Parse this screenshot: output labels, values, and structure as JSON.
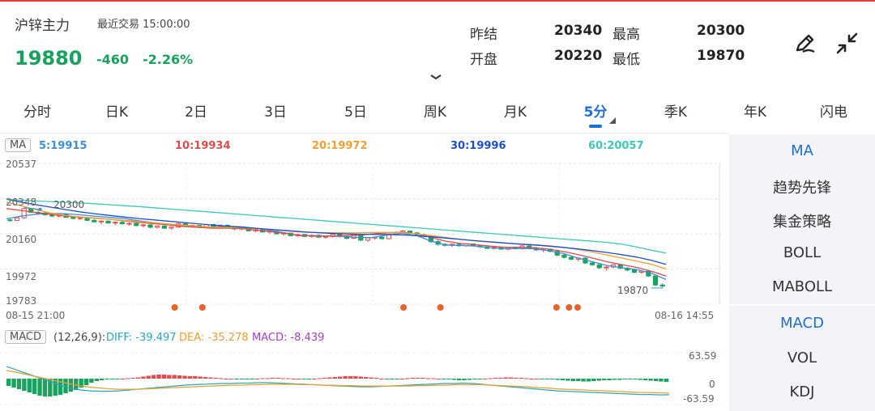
{
  "header": {
    "name": "沪锌主力",
    "trade_status": "最近交易 15:00:00",
    "price": "19880",
    "change": "-460",
    "change_pct": "-2.26%"
  },
  "stats": {
    "prev_settle_label": "昨结",
    "prev_settle": "20340",
    "high_label": "最高",
    "high": "20300",
    "open_label": "开盘",
    "open": "20220",
    "low_label": "最低",
    "low": "19870"
  },
  "icons": {
    "edit": "pencil-icon",
    "collapse": "collapse-arrows-icon",
    "expand": "chevron-down-icon"
  },
  "tabs": [
    "分时",
    "日K",
    "2日",
    "3日",
    "5日",
    "周K",
    "月K",
    "5分",
    "季K",
    "年K",
    "闪电"
  ],
  "active_tab": "5分",
  "ma_legend": {
    "badge": "MA",
    "ma5": "5:19915",
    "ma10": "10:19934",
    "ma20": "20:19972",
    "ma30": "30:19996",
    "ma60": "60:20057"
  },
  "colors": {
    "up": "#e04b4b",
    "down": "#1aa35f",
    "ma5": "#3d8fd8",
    "ma10": "#e04b4b",
    "ma20": "#f0a030",
    "ma30": "#1c4fd0",
    "ma60": "#3cc8b8",
    "dea": "#e8a030",
    "macd": "#a23fc8"
  },
  "price_axis": [
    "20537",
    "20348",
    "20160",
    "19972",
    "19783"
  ],
  "high_marker": "20300",
  "low_marker": "19870",
  "time_axis": {
    "start": "08-15 21:00",
    "end": "08-16 14:55"
  },
  "macd": {
    "badge": "MACD",
    "params": "(12,26,9):",
    "diff": "DIFF: -39.497",
    "dea": "DEA: -35.278",
    "macd": "MACD: -8.439",
    "axis": [
      "63.59",
      "0",
      "-63.59"
    ]
  },
  "side_panel": {
    "main": [
      "MA",
      "趋势先锋",
      "集金策略",
      "BOLL",
      "MABOLL"
    ],
    "sub": [
      "MACD",
      "VOL",
      "KDJ"
    ],
    "active_main": "MA",
    "active_sub": "MACD"
  },
  "chart_data": {
    "type": "candlestick",
    "ylim": [
      19783,
      20537
    ],
    "candles": [
      [
        20235,
        20240,
        20225,
        20232
      ],
      [
        20232,
        20248,
        20228,
        20246
      ],
      [
        20246,
        20300,
        20240,
        20295
      ],
      [
        20295,
        20298,
        20270,
        20275
      ],
      [
        20275,
        20285,
        20262,
        20272
      ],
      [
        20272,
        20278,
        20258,
        20262
      ],
      [
        20262,
        20270,
        20250,
        20255
      ],
      [
        20255,
        20268,
        20248,
        20264
      ],
      [
        20264,
        20270,
        20245,
        20248
      ],
      [
        20248,
        20255,
        20238,
        20242
      ],
      [
        20242,
        20250,
        20232,
        20246
      ],
      [
        20246,
        20250,
        20228,
        20232
      ],
      [
        20232,
        20240,
        20220,
        20224
      ],
      [
        20224,
        20232,
        20212,
        20228
      ],
      [
        20228,
        20232,
        20214,
        20218
      ],
      [
        20218,
        20226,
        20206,
        20222
      ],
      [
        20222,
        20228,
        20210,
        20214
      ],
      [
        20214,
        20222,
        20204,
        20216
      ],
      [
        20216,
        20220,
        20200,
        20204
      ],
      [
        20204,
        20212,
        20194,
        20208
      ],
      [
        20208,
        20212,
        20190,
        20195
      ],
      [
        20195,
        20206,
        20188,
        20202
      ],
      [
        20202,
        20206,
        20186,
        20190
      ],
      [
        20190,
        20200,
        20182,
        20196
      ],
      [
        20196,
        20220,
        20192,
        20215
      ],
      [
        20215,
        20218,
        20198,
        20202
      ],
      [
        20202,
        20210,
        20192,
        20205
      ],
      [
        20205,
        20208,
        20190,
        20194
      ],
      [
        20194,
        20214,
        20190,
        20210
      ],
      [
        20210,
        20212,
        20196,
        20200
      ],
      [
        20200,
        20210,
        20192,
        20206
      ],
      [
        20206,
        20210,
        20190,
        20194
      ],
      [
        20194,
        20200,
        20180,
        20186
      ],
      [
        20186,
        20194,
        20178,
        20190
      ],
      [
        20190,
        20192,
        20172,
        20176
      ],
      [
        20176,
        20186,
        20168,
        20182
      ],
      [
        20182,
        20186,
        20166,
        20170
      ],
      [
        20170,
        20178,
        20160,
        20174
      ],
      [
        20174,
        20176,
        20156,
        20160
      ],
      [
        20160,
        20168,
        20150,
        20164
      ],
      [
        20164,
        20166,
        20146,
        20150
      ],
      [
        20150,
        20160,
        20144,
        20156
      ],
      [
        20156,
        20160,
        20142,
        20146
      ],
      [
        20146,
        20156,
        20140,
        20152
      ],
      [
        20152,
        20158,
        20138,
        20142
      ],
      [
        20142,
        20150,
        20134,
        20146
      ],
      [
        20146,
        20160,
        20140,
        20158
      ],
      [
        20158,
        20162,
        20140,
        20146
      ],
      [
        20146,
        20152,
        20130,
        20136
      ],
      [
        20136,
        20160,
        20132,
        20156
      ],
      [
        20156,
        20160,
        20120,
        20126
      ],
      [
        20126,
        20142,
        20118,
        20138
      ],
      [
        20138,
        20146,
        20128,
        20142
      ],
      [
        20142,
        20150,
        20130,
        20134
      ],
      [
        20134,
        20160,
        20130,
        20155
      ],
      [
        20155,
        20172,
        20150,
        20168
      ],
      [
        20168,
        20180,
        20160,
        20175
      ],
      [
        20175,
        20178,
        20160,
        20165
      ],
      [
        20165,
        20170,
        20150,
        20156
      ],
      [
        20156,
        20162,
        20140,
        20146
      ],
      [
        20146,
        20150,
        20112,
        20118
      ],
      [
        20118,
        20126,
        20098,
        20104
      ],
      [
        20104,
        20110,
        20092,
        20098
      ],
      [
        20098,
        20108,
        20090,
        20104
      ],
      [
        20104,
        20108,
        20090,
        20096
      ],
      [
        20096,
        20110,
        20092,
        20106
      ],
      [
        20106,
        20108,
        20092,
        20096
      ],
      [
        20096,
        20100,
        20084,
        20090
      ],
      [
        20090,
        20098,
        20078,
        20082
      ],
      [
        20082,
        20092,
        20076,
        20088
      ],
      [
        20088,
        20092,
        20074,
        20078
      ],
      [
        20078,
        20090,
        20072,
        20086
      ],
      [
        20086,
        20092,
        20076,
        20080
      ],
      [
        20080,
        20100,
        20076,
        20095
      ],
      [
        20095,
        20098,
        20080,
        20084
      ],
      [
        20084,
        20090,
        20068,
        20074
      ],
      [
        20074,
        20082,
        20062,
        20078
      ],
      [
        20078,
        20080,
        20060,
        20066
      ],
      [
        20066,
        20074,
        20040,
        20046
      ],
      [
        20046,
        20054,
        20028,
        20034
      ],
      [
        20034,
        20042,
        20018,
        20024
      ],
      [
        20024,
        20036,
        20012,
        20030
      ],
      [
        20030,
        20034,
        19998,
        20004
      ],
      [
        20004,
        20012,
        19988,
        19994
      ],
      [
        19994,
        20002,
        19972,
        19978
      ],
      [
        19978,
        19986,
        19962,
        19982
      ],
      [
        19982,
        19998,
        19976,
        19994
      ],
      [
        19994,
        19998,
        19970,
        19976
      ],
      [
        19976,
        19982,
        19960,
        19966
      ],
      [
        19966,
        19974,
        19948,
        19954
      ],
      [
        19954,
        19966,
        19946,
        19960
      ],
      [
        19960,
        19966,
        19930,
        19934
      ],
      [
        19934,
        19942,
        19880,
        19886
      ],
      [
        19886,
        19894,
        19870,
        19880
      ]
    ],
    "ma_series": [
      {
        "name": "MA5",
        "values": [
          20240,
          20255,
          20265,
          20270,
          20268,
          20262,
          20255,
          20248,
          20242,
          20230,
          20220,
          20212,
          20202,
          20195,
          20195,
          20200,
          20198,
          20190,
          20178,
          20165,
          20150,
          20150,
          20148,
          20146,
          20140,
          20140,
          20155,
          20162,
          20150,
          20120,
          20100,
          20098,
          20094,
          20086,
          20080,
          20082,
          20080,
          20070,
          20055,
          20030,
          20010,
          19990,
          19978,
          19968,
          19950,
          19915
        ]
      },
      {
        "name": "MA10",
        "values": [
          20295,
          20285,
          20275,
          20265,
          20255,
          20250,
          20245,
          20238,
          20230,
          20222,
          20215,
          20208,
          20200,
          20195,
          20190,
          20190,
          20188,
          20180,
          20172,
          20162,
          20152,
          20148,
          20148,
          20150,
          20152,
          20160,
          20165,
          20168,
          20160,
          20140,
          20120,
          20108,
          20102,
          20094,
          20088,
          20088,
          20086,
          20078,
          20065,
          20048,
          20030,
          20010,
          19995,
          19980,
          19960,
          19934
        ]
      },
      {
        "name": "MA20",
        "values": [
          20330,
          20310,
          20290,
          20272,
          20258,
          20250,
          20243,
          20238,
          20232,
          20226,
          20220,
          20213,
          20207,
          20201,
          20196,
          20194,
          20192,
          20188,
          20183,
          20177,
          20170,
          20167,
          20166,
          20165,
          20165,
          20167,
          20168,
          20166,
          20160,
          20150,
          20140,
          20130,
          20122,
          20116,
          20110,
          20106,
          20102,
          20096,
          20088,
          20076,
          20062,
          20046,
          20030,
          20014,
          19996,
          19972
        ]
      },
      {
        "name": "MA30",
        "values": [
          20345,
          20330,
          20316,
          20303,
          20290,
          20278,
          20268,
          20259,
          20250,
          20242,
          20235,
          20228,
          20221,
          20214,
          20207,
          20201,
          20195,
          20190,
          20184,
          20178,
          20172,
          20167,
          20163,
          20160,
          20158,
          20157,
          20156,
          20154,
          20150,
          20144,
          20137,
          20130,
          20123,
          20117,
          20111,
          20105,
          20100,
          20094,
          20087,
          20079,
          20070,
          20060,
          20048,
          20035,
          20018,
          19996
        ]
      },
      {
        "name": "MA60",
        "values": [
          20345,
          20340,
          20336,
          20333,
          20329,
          20325,
          20321,
          20316,
          20311,
          20306,
          20300,
          20294,
          20288,
          20282,
          20276,
          20270,
          20264,
          20258,
          20252,
          20246,
          20240,
          20234,
          20228,
          20222,
          20216,
          20210,
          20204,
          20198,
          20192,
          20186,
          20180,
          20174,
          20168,
          20162,
          20156,
          20150,
          20144,
          20138,
          20132,
          20126,
          20120,
          20114,
          20104,
          20090,
          20072,
          20057
        ]
      }
    ],
    "signal_count": 7,
    "macd_ylim": [
      -63.59,
      63.59
    ],
    "macd_hist": [
      -18,
      -22,
      -26,
      -30,
      -34,
      -38,
      -42,
      -44,
      -44,
      -42,
      -40,
      -36,
      -32,
      -28,
      -22,
      -16,
      -10,
      -6,
      -4,
      -2,
      -1,
      -1,
      0,
      1,
      2,
      3,
      5,
      7,
      9,
      10,
      10,
      9,
      9,
      8,
      7,
      6,
      6,
      5,
      4,
      3,
      2,
      1,
      0,
      0,
      -1,
      -1,
      -1,
      -2,
      0,
      1,
      1,
      2,
      2,
      1,
      1,
      0,
      0,
      -1,
      -1,
      0,
      1,
      2,
      3,
      4,
      5,
      6,
      6,
      6,
      5,
      4,
      3,
      2,
      0,
      -1,
      -2,
      -1,
      0,
      1,
      2,
      2,
      2,
      1,
      1,
      0,
      -1,
      -2,
      -3,
      -4,
      -4,
      -3,
      -2,
      -1,
      0,
      1,
      2,
      2,
      3,
      3,
      2,
      2,
      1,
      0,
      0,
      -1,
      -1,
      -2,
      -3,
      -4,
      -5,
      -6,
      -6,
      -7,
      -7,
      -6,
      -5,
      -4,
      -4,
      -3,
      -3,
      -2,
      -2,
      -2,
      -3,
      -4,
      -5,
      -6,
      -7,
      -8
    ],
    "diff": [
      30,
      22,
      14,
      6,
      -2,
      -10,
      -18,
      -24,
      -28,
      -30,
      -31,
      -31,
      -30,
      -28,
      -26,
      -24,
      -22,
      -20,
      -18,
      -16,
      -15,
      -14,
      -13,
      -12,
      -12,
      -11,
      -11,
      -10,
      -10,
      -11,
      -12,
      -13,
      -14,
      -15,
      -16,
      -17,
      -18,
      -19,
      -20,
      -20,
      -19,
      -18,
      -17,
      -16,
      -15,
      -14,
      -13,
      -12,
      -12,
      -11,
      -12,
      -14,
      -16,
      -18,
      -20,
      -22,
      -24,
      -26,
      -28,
      -30,
      -31,
      -32,
      -33,
      -34,
      -35,
      -36,
      -37,
      -38,
      -39,
      -39,
      -40,
      -39.497
    ],
    "dea": [
      20,
      16,
      11,
      6,
      1,
      -4,
      -9,
      -14,
      -18,
      -21,
      -23,
      -25,
      -26,
      -26,
      -26,
      -25,
      -24,
      -23,
      -22,
      -21,
      -20,
      -19,
      -18,
      -17,
      -16,
      -16,
      -15,
      -15,
      -14,
      -14,
      -14,
      -14,
      -15,
      -15,
      -16,
      -16,
      -17,
      -17,
      -18,
      -18,
      -18,
      -18,
      -18,
      -18,
      -17,
      -17,
      -16,
      -16,
      -15,
      -15,
      -15,
      -15,
      -16,
      -17,
      -18,
      -19,
      -20,
      -22,
      -23,
      -25,
      -26,
      -27,
      -28,
      -29,
      -30,
      -31,
      -32,
      -33,
      -34,
      -34,
      -35,
      -35.278
    ]
  }
}
